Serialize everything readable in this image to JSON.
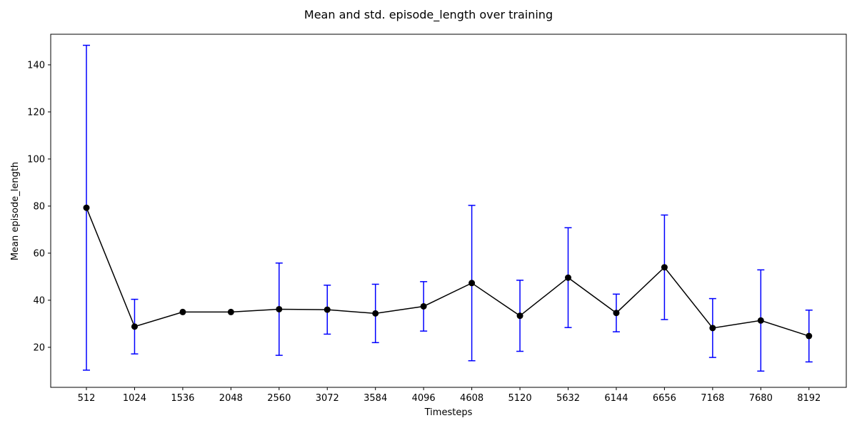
{
  "chart_data": {
    "type": "line",
    "title": "Mean and std. episode_length over training",
    "xlabel": "Timesteps",
    "ylabel": "Mean episode_length",
    "categories": [
      "512",
      "1024",
      "1536",
      "2048",
      "2560",
      "3072",
      "3584",
      "4096",
      "4608",
      "5120",
      "5632",
      "6144",
      "6656",
      "7168",
      "7680",
      "8192"
    ],
    "series": [
      {
        "values": [
          79.3,
          28.8,
          35.0,
          35.0,
          36.2,
          36.0,
          34.4,
          37.4,
          47.3,
          33.4,
          49.6,
          34.6,
          54.0,
          28.2,
          31.4,
          24.8
        ],
        "std": [
          69.0,
          11.6,
          0,
          0,
          19.6,
          10.4,
          12.4,
          10.5,
          33.0,
          15.1,
          21.2,
          8.0,
          22.2,
          12.5,
          21.5,
          11.0
        ],
        "line_color": "#000000",
        "marker_color": "#000000",
        "errorbar_color": "#0000ff"
      }
    ],
    "ylim": [
      3,
      153
    ],
    "yticks": [
      20,
      40,
      60,
      80,
      100,
      120,
      140
    ],
    "grid": false,
    "legend": "none"
  }
}
